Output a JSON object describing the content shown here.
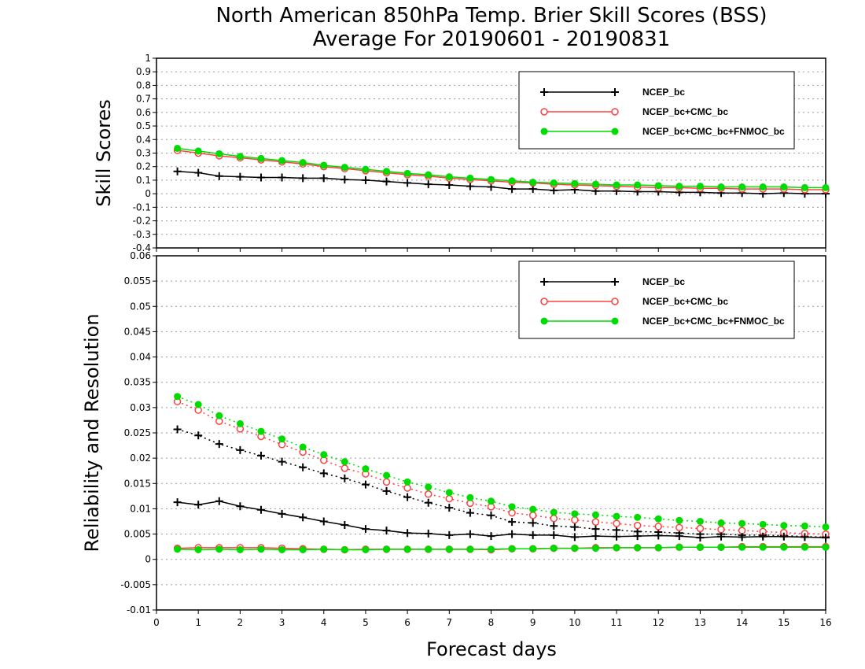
{
  "title_line1": "North American 850hPa Temp. Brier Skill Scores (BSS)",
  "title_line2": "Average For 20190601 - 20190831",
  "xlabel": "Forecast days",
  "chart_data": [
    {
      "type": "line",
      "title": "North American 850hPa Temp. Brier Skill Scores (BSS)",
      "ylabel": "Skill Scores",
      "xlabel": "Forecast days",
      "xlim": [
        0,
        16
      ],
      "ylim": [
        -0.4,
        1
      ],
      "xticks": [
        "0",
        "1",
        "2",
        "3",
        "4",
        "5",
        "6",
        "7",
        "8",
        "9",
        "10",
        "11",
        "12",
        "13",
        "14",
        "15",
        "16"
      ],
      "yticks": [
        "-0.4",
        "-0.3",
        "-0.2",
        "-0.1",
        "0",
        "0.1",
        "0.2",
        "0.3",
        "0.4",
        "0.5",
        "0.6",
        "0.7",
        "0.8",
        "0.9",
        "1"
      ],
      "grid": true,
      "legend_position": "top-right",
      "x": [
        0.5,
        1,
        1.5,
        2,
        2.5,
        3,
        3.5,
        4,
        4.5,
        5,
        5.5,
        6,
        6.5,
        7,
        7.5,
        8,
        8.5,
        9,
        9.5,
        10,
        10.5,
        11,
        11.5,
        12,
        12.5,
        13,
        13.5,
        14,
        14.5,
        15,
        15.5,
        16
      ],
      "series": [
        {
          "name": "NCEP_bc",
          "color": "#000000",
          "marker": "plus",
          "values": [
            0.165,
            0.155,
            0.13,
            0.125,
            0.12,
            0.12,
            0.115,
            0.115,
            0.105,
            0.1,
            0.09,
            0.08,
            0.07,
            0.065,
            0.055,
            0.05,
            0.035,
            0.035,
            0.025,
            0.03,
            0.02,
            0.02,
            0.015,
            0.015,
            0.01,
            0.01,
            0.005,
            0.005,
            0.0,
            0.005,
            0.0,
            0.0
          ]
        },
        {
          "name": "NCEP_bc+CMC_bc",
          "color": "#ff4040",
          "marker": "open-circle",
          "values": [
            0.32,
            0.3,
            0.28,
            0.265,
            0.25,
            0.235,
            0.22,
            0.2,
            0.185,
            0.17,
            0.155,
            0.14,
            0.13,
            0.115,
            0.105,
            0.095,
            0.085,
            0.08,
            0.07,
            0.065,
            0.06,
            0.055,
            0.05,
            0.045,
            0.045,
            0.04,
            0.04,
            0.035,
            0.035,
            0.035,
            0.03,
            0.03
          ]
        },
        {
          "name": "NCEP_bc+CMC_bc+FNMOC_bc",
          "color": "#00dc00",
          "marker": "filled-circle",
          "values": [
            0.335,
            0.315,
            0.295,
            0.275,
            0.26,
            0.245,
            0.23,
            0.21,
            0.195,
            0.18,
            0.165,
            0.15,
            0.14,
            0.125,
            0.115,
            0.105,
            0.095,
            0.085,
            0.08,
            0.075,
            0.07,
            0.065,
            0.065,
            0.06,
            0.055,
            0.055,
            0.05,
            0.05,
            0.05,
            0.05,
            0.045,
            0.045
          ]
        }
      ]
    },
    {
      "type": "line",
      "ylabel": "Reliability and Resolution",
      "xlabel": "Forecast days",
      "xlim": [
        0,
        16
      ],
      "ylim": [
        -0.01,
        0.06
      ],
      "xticks": [
        "0",
        "1",
        "2",
        "3",
        "4",
        "5",
        "6",
        "7",
        "8",
        "9",
        "10",
        "11",
        "12",
        "13",
        "14",
        "15",
        "16"
      ],
      "yticks": [
        "-0.01",
        "-0.005",
        "0",
        "0.005",
        "0.01",
        "0.015",
        "0.02",
        "0.025",
        "0.03",
        "0.035",
        "0.04",
        "0.045",
        "0.05",
        "0.055",
        "0.06"
      ],
      "grid": true,
      "legend_position": "top-right",
      "x": [
        0.5,
        1,
        1.5,
        2,
        2.5,
        3,
        3.5,
        4,
        4.5,
        5,
        5.5,
        6,
        6.5,
        7,
        7.5,
        8,
        8.5,
        9,
        9.5,
        10,
        10.5,
        11,
        11.5,
        12,
        12.5,
        13,
        13.5,
        14,
        14.5,
        15,
        15.5,
        16
      ],
      "series": [
        {
          "name": "NCEP_bc",
          "color": "#000000",
          "marker": "plus",
          "line": "dotted",
          "values": [
            0.0257,
            0.0245,
            0.0228,
            0.0216,
            0.0205,
            0.0193,
            0.0182,
            0.017,
            0.016,
            0.0148,
            0.0135,
            0.0123,
            0.0112,
            0.0102,
            0.0092,
            0.0087,
            0.0074,
            0.0072,
            0.0066,
            0.0064,
            0.006,
            0.0058,
            0.0055,
            0.0054,
            0.0052,
            0.005,
            0.005,
            0.0048,
            0.0048,
            0.0047,
            0.0045,
            0.0044
          ]
        },
        {
          "name": "NCEP_bc+CMC_bc",
          "color": "#ff4040",
          "marker": "open-circle",
          "line": "dotted",
          "values": [
            0.0312,
            0.0295,
            0.0273,
            0.0258,
            0.0243,
            0.0227,
            0.0212,
            0.0196,
            0.018,
            0.0169,
            0.0153,
            0.0141,
            0.0129,
            0.012,
            0.0111,
            0.0104,
            0.0092,
            0.0087,
            0.0081,
            0.0078,
            0.0074,
            0.0071,
            0.0067,
            0.0065,
            0.0063,
            0.0061,
            0.0059,
            0.0057,
            0.0055,
            0.0053,
            0.0051,
            0.005
          ]
        },
        {
          "name": "NCEP_bc+CMC_bc+FNMOC_bc",
          "color": "#00dc00",
          "marker": "filled-circle",
          "line": "dotted",
          "values": [
            0.0322,
            0.0306,
            0.0284,
            0.0268,
            0.0253,
            0.0238,
            0.0222,
            0.0207,
            0.0193,
            0.0179,
            0.0166,
            0.0153,
            0.0143,
            0.0132,
            0.0122,
            0.0115,
            0.0104,
            0.0099,
            0.0093,
            0.009,
            0.0088,
            0.0085,
            0.0083,
            0.008,
            0.0077,
            0.0075,
            0.0072,
            0.0071,
            0.0069,
            0.0067,
            0.0066,
            0.0064
          ]
        },
        {
          "name": "NCEP_bc",
          "color": "#000000",
          "marker": "plus",
          "line": "solid",
          "values": [
            0.0113,
            0.0108,
            0.0115,
            0.0105,
            0.0098,
            0.009,
            0.0083,
            0.0075,
            0.0068,
            0.006,
            0.0057,
            0.0052,
            0.0051,
            0.0048,
            0.005,
            0.0046,
            0.005,
            0.0048,
            0.0048,
            0.0044,
            0.0046,
            0.0045,
            0.0046,
            0.0047,
            0.0046,
            0.0043,
            0.0045,
            0.0044,
            0.0045,
            0.0045,
            0.0044,
            0.0043
          ]
        },
        {
          "name": "NCEP_bc+CMC_bc",
          "color": "#ff4040",
          "marker": "open-circle",
          "line": "solid",
          "values": [
            0.0022,
            0.0023,
            0.0023,
            0.0023,
            0.0023,
            0.0022,
            0.0021,
            0.002,
            0.0019,
            0.002,
            0.002,
            0.002,
            0.002,
            0.002,
            0.002,
            0.0019,
            0.0021,
            0.0021,
            0.0022,
            0.0022,
            0.0023,
            0.0023,
            0.0023,
            0.0023,
            0.0024,
            0.0024,
            0.0024,
            0.0025,
            0.0025,
            0.0025,
            0.0025,
            0.0025
          ]
        },
        {
          "name": "NCEP_bc+CMC_bc+FNMOC_bc",
          "color": "#00dc00",
          "marker": "filled-circle",
          "line": "solid",
          "values": [
            0.002,
            0.0019,
            0.002,
            0.0019,
            0.002,
            0.0019,
            0.0019,
            0.002,
            0.0019,
            0.0019,
            0.002,
            0.002,
            0.002,
            0.002,
            0.002,
            0.002,
            0.0021,
            0.0021,
            0.0022,
            0.0022,
            0.0022,
            0.0023,
            0.0023,
            0.0023,
            0.0024,
            0.0024,
            0.0024,
            0.0024,
            0.0024,
            0.0024,
            0.0024,
            0.0024
          ]
        }
      ]
    }
  ]
}
